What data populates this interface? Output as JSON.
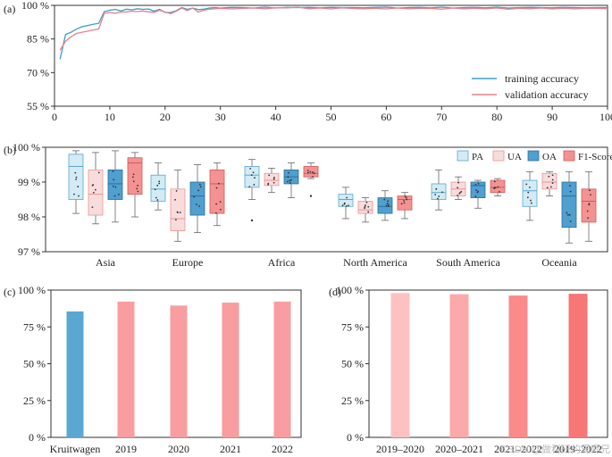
{
  "watermark": "CSDN @做科研的周师兄",
  "chart_data": [
    {
      "panel": "(a)",
      "type": "line",
      "xlim": [
        0,
        100
      ],
      "xticks": [
        0,
        10,
        20,
        30,
        40,
        50,
        60,
        70,
        80,
        90,
        100
      ],
      "ylim": [
        55,
        100
      ],
      "yticks": [
        55,
        70,
        85,
        100
      ],
      "ytick_labels": [
        "55 %",
        "70 %",
        "85 %",
        "100 %"
      ],
      "legend": "bottom-right",
      "series": [
        {
          "name": "training accuracy",
          "color": "#3a9fc4",
          "x": [
            1,
            2,
            3,
            4,
            5,
            6,
            7,
            8,
            9,
            10,
            11,
            12,
            13,
            14,
            15,
            16,
            17,
            18,
            19,
            20,
            21,
            22,
            23,
            24,
            25,
            26,
            27,
            28,
            29,
            30,
            32,
            34,
            36,
            38,
            40,
            42,
            44,
            46,
            48,
            50,
            52,
            54,
            56,
            58,
            60,
            62,
            64,
            66,
            68,
            70,
            72,
            74,
            76,
            78,
            80,
            82,
            84,
            86,
            88,
            90,
            92,
            94,
            96,
            98,
            100
          ],
          "y": [
            76,
            87,
            88,
            89.5,
            90.5,
            91,
            91.5,
            92,
            97.2,
            97.8,
            98.2,
            97.5,
            98.3,
            98,
            98.5,
            98.2,
            98.4,
            97.4,
            98.2,
            96.8,
            96.8,
            97.6,
            99,
            98.2,
            98.8,
            98.1,
            98.3,
            98.8,
            99,
            98.8,
            99.1,
            99,
            98.8,
            99.2,
            98.8,
            99.1,
            99,
            99.1,
            98.9,
            99.1,
            99,
            99,
            98.9,
            99.1,
            99.2,
            98.8,
            99,
            99.1,
            98.9,
            99.2,
            98.8,
            99,
            99.1,
            98.9,
            99.2,
            98.8,
            99,
            99.1,
            99,
            98.9,
            99.1,
            99,
            98.9,
            99,
            99
          ]
        },
        {
          "name": "validation accuracy",
          "color": "#e8808f",
          "x": [
            1,
            2,
            3,
            4,
            5,
            6,
            7,
            8,
            9,
            10,
            11,
            12,
            13,
            14,
            15,
            16,
            17,
            18,
            19,
            20,
            21,
            22,
            23,
            24,
            25,
            26,
            27,
            28,
            29,
            30,
            32,
            34,
            36,
            38,
            40,
            42,
            44,
            46,
            48,
            50,
            52,
            54,
            56,
            58,
            60,
            62,
            64,
            66,
            68,
            70,
            72,
            74,
            76,
            78,
            80,
            82,
            84,
            86,
            88,
            90,
            92,
            94,
            96,
            98,
            100
          ],
          "y": [
            80,
            84,
            86,
            87.5,
            88,
            88.5,
            89,
            89.5,
            96.5,
            96.8,
            96.5,
            97,
            97.1,
            97.4,
            97.2,
            97.5,
            97.1,
            96.9,
            97.8,
            97,
            96.3,
            97.4,
            98.8,
            97.7,
            98.8,
            97,
            97.8,
            98.3,
            98.5,
            98.7,
            98.4,
            98.6,
            98.8,
            98.5,
            98.9,
            98.9,
            99.2,
            98.5,
            98.8,
            98.4,
            98.9,
            98.6,
            98.5,
            98.7,
            98.4,
            98.8,
            98.5,
            98.6,
            98.7,
            98.3,
            98.8,
            98.5,
            98.7,
            98.5,
            98.8,
            98.3,
            98.7,
            98.5,
            98.8,
            98.4,
            98.7,
            98.5,
            98.6,
            98.7,
            98.5
          ]
        }
      ]
    },
    {
      "panel": "(b)",
      "type": "box",
      "ylim": [
        97,
        100
      ],
      "yticks": [
        97,
        98,
        99,
        100
      ],
      "ytick_labels": [
        "97 %",
        "98 %",
        "99 %",
        "100 %"
      ],
      "categories": [
        "Asia",
        "Europe",
        "Africa",
        "North America",
        "South America",
        "Oceania"
      ],
      "legend": "top-right",
      "series": [
        {
          "name": "PA",
          "fill": "#d3ebf5",
          "edge": "#5aa7cf",
          "boxes": [
            {
              "min": 98.1,
              "q1": 98.5,
              "median": 99.45,
              "q3": 99.8,
              "max": 99.9
            },
            {
              "min": 98.2,
              "q1": 98.45,
              "median": 98.8,
              "q3": 99.2,
              "max": 99.55
            },
            {
              "min": 98.5,
              "q1": 98.85,
              "median": 99.2,
              "q3": 99.45,
              "max": 99.65,
              "outliers": [
                97.9
              ]
            },
            {
              "min": 97.95,
              "q1": 98.3,
              "median": 98.5,
              "q3": 98.65,
              "max": 98.85
            },
            {
              "min": 98.2,
              "q1": 98.5,
              "median": 98.7,
              "q3": 98.95,
              "max": 99.35
            },
            {
              "min": 97.9,
              "q1": 98.3,
              "median": 98.75,
              "q3": 99.05,
              "max": 99.3
            }
          ]
        },
        {
          "name": "UA",
          "fill": "#f8dcdc",
          "edge": "#e89595",
          "boxes": [
            {
              "min": 97.8,
              "q1": 98.05,
              "median": 98.65,
              "q3": 99.35,
              "max": 99.85
            },
            {
              "min": 97.3,
              "q1": 97.6,
              "median": 97.95,
              "q3": 98.8,
              "max": 99.35
            },
            {
              "min": 98.7,
              "q1": 98.9,
              "median": 99.05,
              "q3": 99.25,
              "max": 99.4
            },
            {
              "min": 97.85,
              "q1": 98.1,
              "median": 98.2,
              "q3": 98.45,
              "max": 98.55
            },
            {
              "min": 98.5,
              "q1": 98.6,
              "median": 98.8,
              "q3": 99.0,
              "max": 99.15
            },
            {
              "min": 98.6,
              "q1": 98.8,
              "median": 99.0,
              "q3": 99.25,
              "max": 99.3
            }
          ]
        },
        {
          "name": "OA",
          "fill": "#4f9fd0",
          "edge": "#2d6f9a",
          "boxes": [
            {
              "min": 97.85,
              "q1": 98.5,
              "median": 98.95,
              "q3": 99.35,
              "max": 99.9
            },
            {
              "min": 97.55,
              "q1": 98.05,
              "median": 98.6,
              "q3": 99.0,
              "max": 99.5
            },
            {
              "min": 98.55,
              "q1": 98.95,
              "median": 99.15,
              "q3": 99.35,
              "max": 99.55
            },
            {
              "min": 97.9,
              "q1": 98.1,
              "median": 98.3,
              "q3": 98.55,
              "max": 98.75
            },
            {
              "min": 98.25,
              "q1": 98.55,
              "median": 98.9,
              "q3": 99.0,
              "max": 99.05
            },
            {
              "min": 97.25,
              "q1": 97.7,
              "median": 98.6,
              "q3": 99.0,
              "max": 99.3
            }
          ]
        },
        {
          "name": "F1-Score",
          "fill": "#f49292",
          "edge": "#d15a5a",
          "boxes": [
            {
              "min": 98.0,
              "q1": 98.65,
              "median": 99.55,
              "q3": 99.7,
              "max": 99.85
            },
            {
              "min": 97.75,
              "q1": 98.1,
              "median": 98.95,
              "q3": 99.35,
              "max": 99.55
            },
            {
              "min": 99.1,
              "q1": 99.15,
              "median": 99.25,
              "q3": 99.45,
              "max": 99.55,
              "outliers": [
                98.6
              ]
            },
            {
              "min": 97.95,
              "q1": 98.2,
              "median": 98.5,
              "q3": 98.6,
              "max": 98.7
            },
            {
              "min": 98.6,
              "q1": 98.7,
              "median": 98.85,
              "q3": 99.05,
              "max": 99.1
            },
            {
              "min": 97.3,
              "q1": 97.85,
              "median": 98.45,
              "q3": 98.8,
              "max": 99.3
            }
          ]
        }
      ]
    },
    {
      "panel": "(c)",
      "type": "bar",
      "ylim": [
        0,
        100
      ],
      "yticks": [
        0,
        25,
        50,
        75,
        100
      ],
      "ytick_labels": [
        "0 %",
        "25 %",
        "50 %",
        "75 %",
        "100 %"
      ],
      "categories": [
        "Kruitwagen",
        "2019",
        "2020",
        "2021",
        "2022"
      ],
      "values": [
        85.5,
        92.2,
        89.5,
        91.5,
        92.2
      ],
      "colors": [
        "#5aa7d2",
        "#f89da0",
        "#f89da0",
        "#f89da0",
        "#f89da0"
      ]
    },
    {
      "panel": "(d)",
      "type": "bar",
      "ylim": [
        0,
        100
      ],
      "yticks": [
        0,
        25,
        50,
        75,
        100
      ],
      "ytick_labels": [
        "0 %",
        "25 %",
        "50 %",
        "75 %",
        "100 %"
      ],
      "categories": [
        "2019–2020",
        "2020–2021",
        "2021–2022",
        "2019–2022"
      ],
      "values": [
        98.0,
        97.2,
        96.3,
        97.5
      ],
      "colors": [
        "#fdc1c1",
        "#fca9a9",
        "#f98b8b",
        "#f77676"
      ]
    }
  ]
}
